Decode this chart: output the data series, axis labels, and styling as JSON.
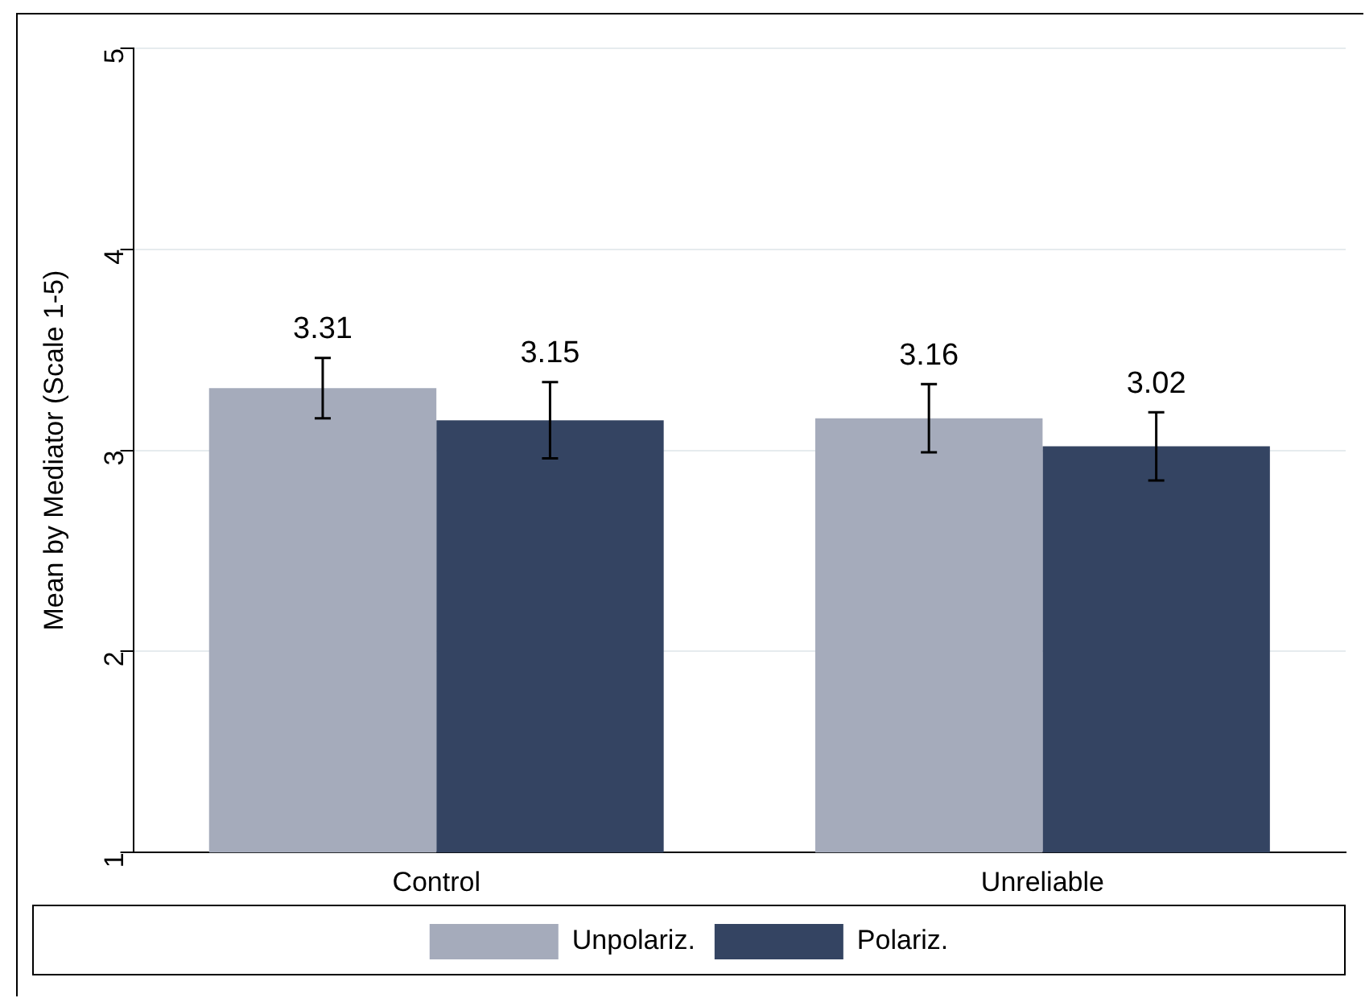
{
  "chart_data": {
    "type": "bar",
    "ylabel": "Mean by Mediator (Scale 1-5)",
    "categories": [
      "Control",
      "Unreliable"
    ],
    "series": [
      {
        "name": "Unpolariz.",
        "color": "#a5abbb",
        "values": [
          3.31,
          3.16
        ],
        "errors": [
          0.15,
          0.17
        ]
      },
      {
        "name": "Polariz.",
        "color": "#344462",
        "values": [
          3.15,
          3.02
        ],
        "errors": [
          0.19,
          0.17
        ]
      }
    ],
    "ylim": [
      1,
      5
    ],
    "yticks": [
      1,
      2,
      3,
      4,
      5
    ],
    "grid": "y",
    "legend": "bottom",
    "data_labels": true
  }
}
